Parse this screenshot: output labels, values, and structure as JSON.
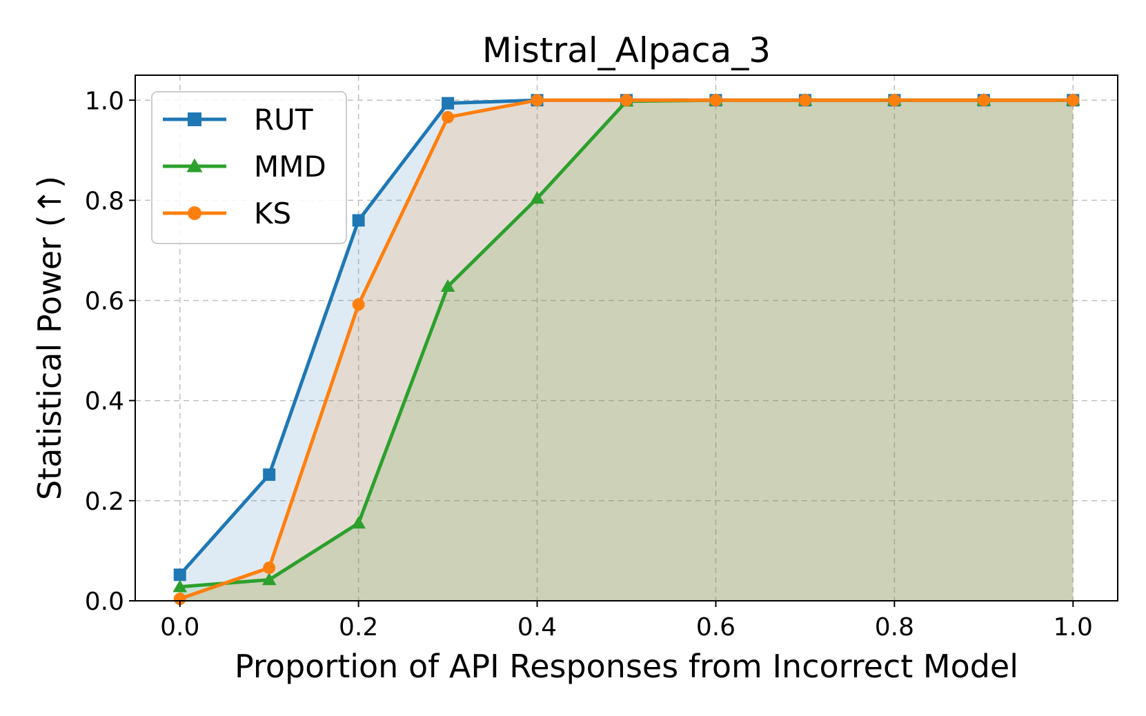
{
  "chart_data": {
    "type": "line",
    "title": "Mistral_Alpaca_3",
    "xlabel": "Proportion of API Responses from Incorrect Model",
    "ylabel": "Statistical Power (↑)",
    "xlim": [
      -0.05,
      1.05
    ],
    "ylim": [
      0.0,
      1.05
    ],
    "xticks": [
      0.0,
      0.2,
      0.4,
      0.6,
      0.8,
      1.0
    ],
    "xtick_labels": [
      "0.0",
      "0.2",
      "0.4",
      "0.6",
      "0.8",
      "1.0"
    ],
    "yticks": [
      0.0,
      0.2,
      0.4,
      0.6,
      0.8,
      1.0
    ],
    "ytick_labels": [
      "0.0",
      "0.2",
      "0.4",
      "0.6",
      "0.8",
      "1.0"
    ],
    "grid": true,
    "legend_position": "top-left",
    "x": [
      0.0,
      0.1,
      0.2,
      0.3,
      0.4,
      0.5,
      0.6,
      0.7,
      0.8,
      0.9,
      1.0
    ],
    "series": [
      {
        "name": "RUT",
        "marker": "square",
        "color": "#1f77b4",
        "fill": "#1f77b4",
        "values": [
          0.052,
          0.252,
          0.76,
          0.994,
          1.0,
          1.0,
          1.0,
          1.0,
          1.0,
          1.0,
          1.0
        ]
      },
      {
        "name": "MMD",
        "marker": "triangle",
        "color": "#2ca02c",
        "fill": "#2ca02c",
        "values": [
          0.028,
          0.042,
          0.155,
          0.628,
          0.804,
          0.998,
          1.0,
          1.0,
          1.0,
          1.0,
          1.0
        ]
      },
      {
        "name": "KS",
        "marker": "circle",
        "color": "#ff7f0e",
        "fill": "#ff7f0e",
        "values": [
          0.004,
          0.066,
          0.592,
          0.966,
          1.0,
          1.0,
          1.0,
          1.0,
          1.0,
          1.0,
          1.0
        ]
      }
    ]
  }
}
